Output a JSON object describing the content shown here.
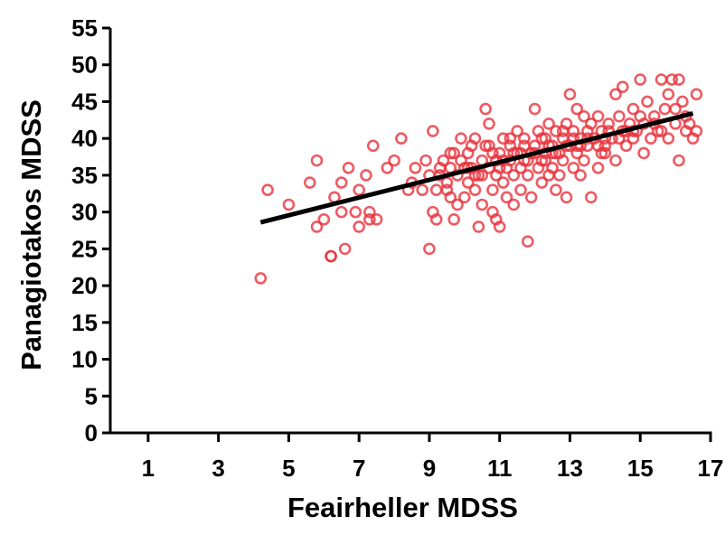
{
  "chart_data": {
    "type": "scatter",
    "xlabel": "Feairheller MDSS",
    "ylabel": "Panagiotakos MDSS",
    "xlim": [
      0,
      17
    ],
    "ylim": [
      0,
      55
    ],
    "xticks": [
      1,
      3,
      5,
      7,
      9,
      11,
      13,
      15,
      17
    ],
    "yticks": [
      0,
      5,
      10,
      15,
      20,
      25,
      30,
      35,
      40,
      45,
      50,
      55
    ],
    "grid": false,
    "legend": "none",
    "marker_color": "#e8323c",
    "fit_color": "#000000",
    "series": [
      {
        "points": [
          [
            4.2,
            21
          ],
          [
            4.4,
            33
          ],
          [
            5.0,
            31
          ],
          [
            5.6,
            34
          ],
          [
            5.8,
            37
          ],
          [
            5.8,
            28
          ],
          [
            6.0,
            29
          ],
          [
            6.2,
            24
          ],
          [
            6.2,
            24
          ],
          [
            6.3,
            32
          ],
          [
            6.5,
            30
          ],
          [
            6.5,
            34
          ],
          [
            6.6,
            25
          ],
          [
            6.7,
            36
          ],
          [
            6.9,
            30
          ],
          [
            7.0,
            33
          ],
          [
            7.0,
            28
          ],
          [
            7.2,
            35
          ],
          [
            7.3,
            29
          ],
          [
            7.3,
            30
          ],
          [
            7.4,
            39
          ],
          [
            7.5,
            29
          ],
          [
            7.8,
            36
          ],
          [
            8.0,
            37
          ],
          [
            8.2,
            40
          ],
          [
            8.4,
            33
          ],
          [
            8.5,
            34
          ],
          [
            8.6,
            36
          ],
          [
            8.8,
            33
          ],
          [
            8.9,
            37
          ],
          [
            9.0,
            25
          ],
          [
            9.0,
            35
          ],
          [
            9.1,
            41
          ],
          [
            9.1,
            30
          ],
          [
            9.2,
            29
          ],
          [
            9.2,
            33
          ],
          [
            9.3,
            35
          ],
          [
            9.4,
            37
          ],
          [
            9.5,
            34
          ],
          [
            9.6,
            32
          ],
          [
            9.6,
            36
          ],
          [
            9.7,
            29
          ],
          [
            9.7,
            38
          ],
          [
            9.8,
            31
          ],
          [
            9.8,
            35
          ],
          [
            9.9,
            40
          ],
          [
            10.0,
            32
          ],
          [
            10.0,
            36
          ],
          [
            10.1,
            34
          ],
          [
            10.1,
            38
          ],
          [
            10.2,
            36
          ],
          [
            10.3,
            33
          ],
          [
            10.3,
            40
          ],
          [
            10.4,
            35
          ],
          [
            10.4,
            28
          ],
          [
            10.5,
            37
          ],
          [
            10.5,
            31
          ],
          [
            10.6,
            44
          ],
          [
            10.6,
            39
          ],
          [
            10.7,
            36
          ],
          [
            10.7,
            42
          ],
          [
            10.8,
            33
          ],
          [
            10.8,
            30
          ],
          [
            10.9,
            35
          ],
          [
            10.9,
            29
          ],
          [
            11.0,
            38
          ],
          [
            11.0,
            28
          ],
          [
            11.1,
            34
          ],
          [
            11.1,
            40
          ],
          [
            11.2,
            36
          ],
          [
            11.2,
            32
          ],
          [
            11.3,
            37
          ],
          [
            11.3,
            39
          ],
          [
            11.4,
            35
          ],
          [
            11.4,
            31
          ],
          [
            11.5,
            38
          ],
          [
            11.5,
            41
          ],
          [
            11.6,
            36
          ],
          [
            11.6,
            33
          ],
          [
            11.7,
            40
          ],
          [
            11.7,
            37
          ],
          [
            11.8,
            26
          ],
          [
            11.8,
            35
          ],
          [
            11.9,
            38
          ],
          [
            11.9,
            32
          ],
          [
            12.0,
            39
          ],
          [
            12.0,
            44
          ],
          [
            12.1,
            36
          ],
          [
            12.1,
            41
          ],
          [
            12.2,
            37
          ],
          [
            12.2,
            34
          ],
          [
            12.3,
            40
          ],
          [
            12.3,
            38
          ],
          [
            12.4,
            35
          ],
          [
            12.4,
            42
          ],
          [
            12.5,
            36
          ],
          [
            12.5,
            39
          ],
          [
            12.6,
            33
          ],
          [
            12.6,
            41
          ],
          [
            12.7,
            38
          ],
          [
            12.7,
            35
          ],
          [
            12.8,
            40
          ],
          [
            12.8,
            37
          ],
          [
            12.9,
            42
          ],
          [
            12.9,
            32
          ],
          [
            13.0,
            39
          ],
          [
            13.0,
            46
          ],
          [
            13.1,
            36
          ],
          [
            13.1,
            41
          ],
          [
            13.2,
            38
          ],
          [
            13.2,
            44
          ],
          [
            13.3,
            40
          ],
          [
            13.3,
            35
          ],
          [
            13.4,
            43
          ],
          [
            13.4,
            37
          ],
          [
            13.5,
            41
          ],
          [
            13.5,
            39
          ],
          [
            13.6,
            42
          ],
          [
            13.6,
            32
          ],
          [
            13.7,
            40
          ],
          [
            13.8,
            36
          ],
          [
            13.8,
            43
          ],
          [
            13.9,
            41
          ],
          [
            14.0,
            39
          ],
          [
            14.0,
            38
          ],
          [
            14.1,
            42
          ],
          [
            14.2,
            40
          ],
          [
            14.3,
            46
          ],
          [
            14.3,
            37
          ],
          [
            14.4,
            43
          ],
          [
            14.5,
            41
          ],
          [
            14.5,
            47
          ],
          [
            14.6,
            39
          ],
          [
            14.7,
            42
          ],
          [
            14.8,
            40
          ],
          [
            14.8,
            44
          ],
          [
            14.9,
            41
          ],
          [
            15.0,
            48
          ],
          [
            15.0,
            43
          ],
          [
            15.1,
            42
          ],
          [
            15.1,
            38
          ],
          [
            15.2,
            45
          ],
          [
            15.3,
            40
          ],
          [
            15.4,
            43
          ],
          [
            15.5,
            41
          ],
          [
            15.6,
            48
          ],
          [
            15.7,
            44
          ],
          [
            15.8,
            46
          ],
          [
            15.8,
            40
          ],
          [
            15.9,
            48
          ],
          [
            16.0,
            42
          ],
          [
            16.0,
            44
          ],
          [
            16.1,
            37
          ],
          [
            16.1,
            48
          ],
          [
            16.2,
            45
          ],
          [
            16.3,
            41
          ],
          [
            16.3,
            43
          ],
          [
            16.5,
            40
          ],
          [
            16.6,
            46
          ],
          [
            16.6,
            41
          ],
          [
            9.3,
            36
          ],
          [
            9.6,
            38
          ],
          [
            9.9,
            37
          ],
          [
            10.2,
            39
          ],
          [
            10.5,
            35
          ],
          [
            10.8,
            38
          ],
          [
            11.1,
            37
          ],
          [
            11.4,
            38
          ],
          [
            11.7,
            39
          ],
          [
            12.0,
            38
          ],
          [
            12.3,
            37
          ],
          [
            12.6,
            38
          ],
          [
            12.9,
            39
          ],
          [
            13.2,
            39
          ],
          [
            13.5,
            40
          ],
          [
            13.8,
            39
          ],
          [
            14.1,
            41
          ],
          [
            14.4,
            40
          ],
          [
            10.1,
            36
          ],
          [
            10.9,
            37
          ],
          [
            11.6,
            38
          ],
          [
            12.4,
            39
          ],
          [
            13.1,
            40
          ],
          [
            13.9,
            38
          ],
          [
            14.6,
            41
          ],
          [
            15.4,
            42
          ],
          [
            9.5,
            33
          ],
          [
            10.3,
            35
          ],
          [
            11.0,
            36
          ],
          [
            11.8,
            37
          ],
          [
            12.5,
            38
          ],
          [
            13.3,
            39
          ],
          [
            14.0,
            40
          ],
          [
            14.8,
            41
          ],
          [
            15.6,
            41
          ],
          [
            16.4,
            42
          ],
          [
            12.2,
            40
          ],
          [
            12.8,
            41
          ],
          [
            11.3,
            40
          ],
          [
            10.7,
            39
          ]
        ]
      }
    ],
    "fit_line": {
      "x": [
        4.2,
        16.5
      ],
      "y": [
        28.6,
        43.4
      ]
    }
  }
}
